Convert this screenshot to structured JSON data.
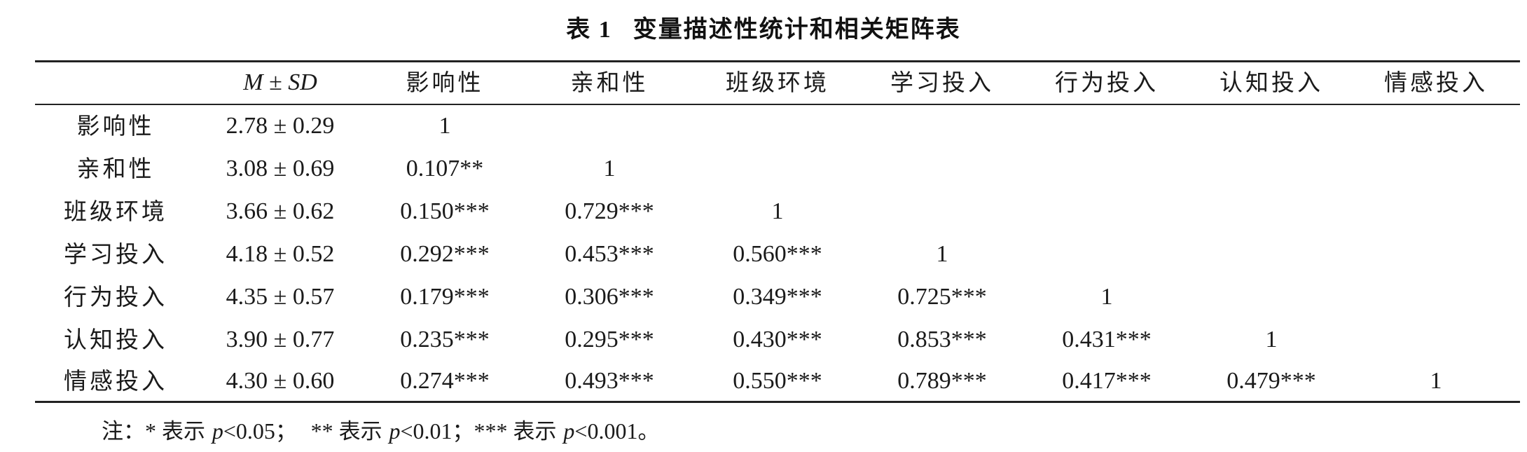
{
  "caption": {
    "number": "表 1",
    "title": "变量描述性统计和相关矩阵表"
  },
  "table": {
    "columns": [
      "",
      "M ± SD",
      "影响性",
      "亲和性",
      "班级环境",
      "学习投入",
      "行为投入",
      "认知投入",
      "情感投入"
    ],
    "rows": [
      {
        "label": "影响性",
        "msd": "2.78 ± 0.29",
        "cells": [
          "1",
          "",
          "",
          "",
          "",
          "",
          ""
        ]
      },
      {
        "label": "亲和性",
        "msd": "3.08 ± 0.69",
        "cells": [
          "0.107**",
          "1",
          "",
          "",
          "",
          "",
          ""
        ]
      },
      {
        "label": "班级环境",
        "msd": "3.66 ± 0.62",
        "cells": [
          "0.150***",
          "0.729***",
          "1",
          "",
          "",
          "",
          ""
        ]
      },
      {
        "label": "学习投入",
        "msd": "4.18 ± 0.52",
        "cells": [
          "0.292***",
          "0.453***",
          "0.560***",
          "1",
          "",
          "",
          ""
        ]
      },
      {
        "label": "行为投入",
        "msd": "4.35 ± 0.57",
        "cells": [
          "0.179***",
          "0.306***",
          "0.349***",
          "0.725***",
          "1",
          "",
          ""
        ]
      },
      {
        "label": "认知投入",
        "msd": "3.90 ± 0.77",
        "cells": [
          "0.235***",
          "0.295***",
          "0.430***",
          "0.853***",
          "0.431***",
          "1",
          ""
        ]
      },
      {
        "label": "情感投入",
        "msd": "4.30 ± 0.60",
        "cells": [
          "0.274***",
          "0.493***",
          "0.550***",
          "0.789***",
          "0.417***",
          "0.479***",
          "1"
        ]
      }
    ]
  },
  "note": {
    "prefix": "注：",
    "part1_stars": "* ",
    "part1_word": "表示 ",
    "part1_p": "p",
    "part1_val": "<0.05",
    "sep1": "；  ",
    "part2_stars": "** ",
    "part2_word": "表示 ",
    "part2_p": "p",
    "part2_val": "<0.01",
    "sep2": "；",
    "part3_stars": "*** ",
    "part3_word": "表示 ",
    "part3_p": "p",
    "part3_val": "<0.001",
    "end": "。"
  }
}
